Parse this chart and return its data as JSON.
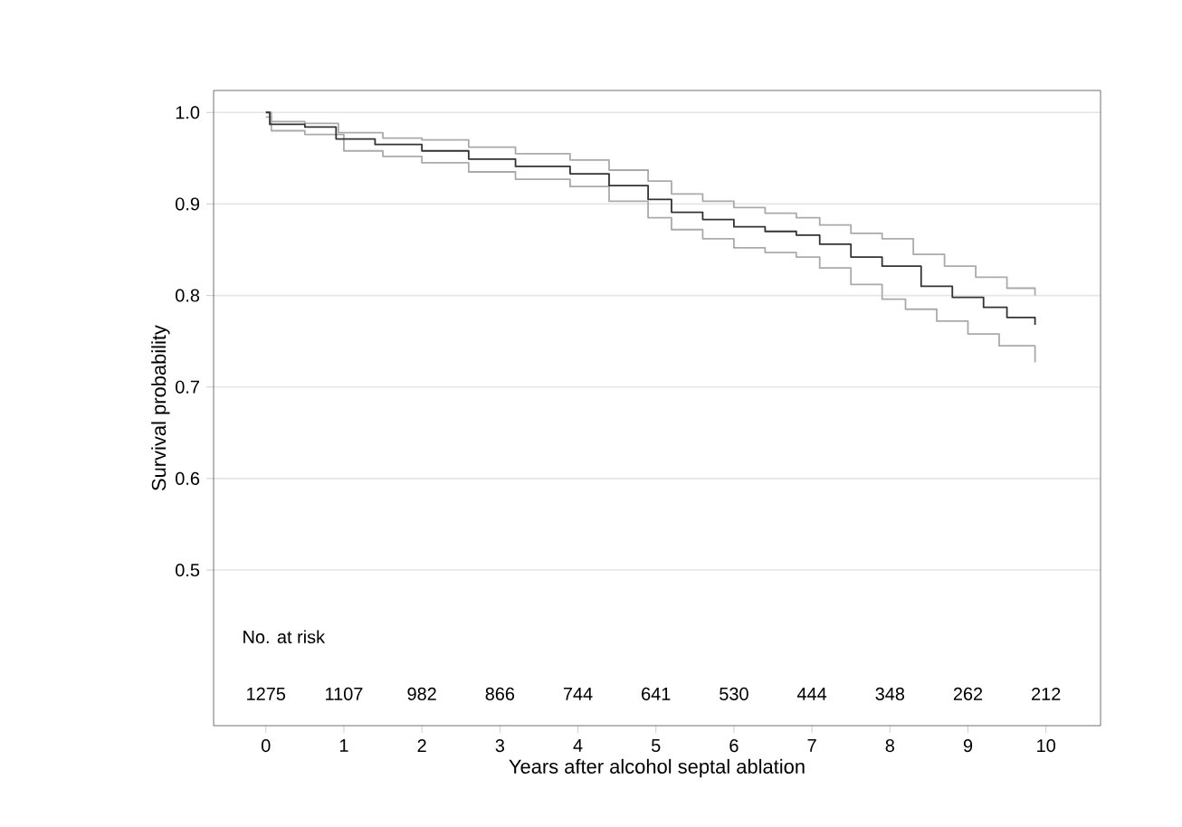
{
  "chart_data": {
    "type": "step",
    "xlabel": "Years after alcohol septal ablation",
    "ylabel": "Survival probability",
    "xlim": [
      -0.67,
      10.7
    ],
    "ylim": [
      0.33,
      1.024
    ],
    "xticks": [
      0,
      1,
      2,
      3,
      4,
      5,
      6,
      7,
      8,
      9,
      10
    ],
    "yticks": [
      {
        "value": 0.5,
        "label": "0.5"
      },
      {
        "value": 0.6,
        "label": "0.6"
      },
      {
        "value": 0.7,
        "label": "0.7"
      },
      {
        "value": 0.8,
        "label": "0.8"
      },
      {
        "value": 0.9,
        "label": "0.9"
      },
      {
        "value": 1,
        "label": "1.0"
      }
    ],
    "grid": "y",
    "marker": "none",
    "line_style": "solid",
    "series": [
      {
        "color": "#aaaaaa",
        "x": [
          0,
          0.07,
          0.5,
          1.0,
          1.5,
          2.0,
          2.6,
          3.2,
          3.9,
          4.4,
          4.9,
          5.2,
          5.6,
          6.0,
          6.4,
          6.8,
          7.1,
          7.5,
          7.9,
          8.2,
          8.6,
          9.0,
          9.4,
          9.86
        ],
        "values": [
          0.995,
          0.98,
          0.976,
          0.958,
          0.952,
          0.945,
          0.935,
          0.927,
          0.919,
          0.903,
          0.885,
          0.872,
          0.862,
          0.852,
          0.847,
          0.842,
          0.83,
          0.812,
          0.796,
          0.785,
          0.772,
          0.758,
          0.745,
          0.727
        ]
      },
      {
        "color": "#aaaaaa",
        "x": [
          0,
          0.07,
          0.5,
          0.93,
          1.5,
          2.0,
          2.6,
          3.2,
          3.9,
          4.4,
          4.9,
          5.2,
          5.6,
          6.0,
          6.4,
          6.8,
          7.1,
          7.5,
          7.9,
          8.3,
          8.7,
          9.1,
          9.5,
          9.86
        ],
        "values": [
          1.0,
          0.99,
          0.988,
          0.978,
          0.972,
          0.97,
          0.962,
          0.955,
          0.948,
          0.937,
          0.925,
          0.911,
          0.903,
          0.896,
          0.89,
          0.885,
          0.877,
          0.868,
          0.862,
          0.845,
          0.832,
          0.82,
          0.808,
          0.8
        ]
      },
      {
        "color": "#333333",
        "x": [
          0,
          0.05,
          0.5,
          0.9,
          1.4,
          2.0,
          2.6,
          3.2,
          3.9,
          4.4,
          4.9,
          5.2,
          5.6,
          6.0,
          6.4,
          6.8,
          7.1,
          7.5,
          7.9,
          8.4,
          8.8,
          9.2,
          9.5,
          9.86
        ],
        "values": [
          1.0,
          0.987,
          0.984,
          0.971,
          0.965,
          0.958,
          0.949,
          0.941,
          0.933,
          0.92,
          0.905,
          0.891,
          0.883,
          0.875,
          0.87,
          0.866,
          0.856,
          0.842,
          0.832,
          0.81,
          0.798,
          0.787,
          0.776,
          0.768
        ]
      }
    ],
    "annotations": [
      "No. at risk",
      "1275",
      "1107",
      "982",
      "866",
      "744",
      "641",
      "530",
      "444",
      "348",
      "262",
      "212"
    ]
  }
}
